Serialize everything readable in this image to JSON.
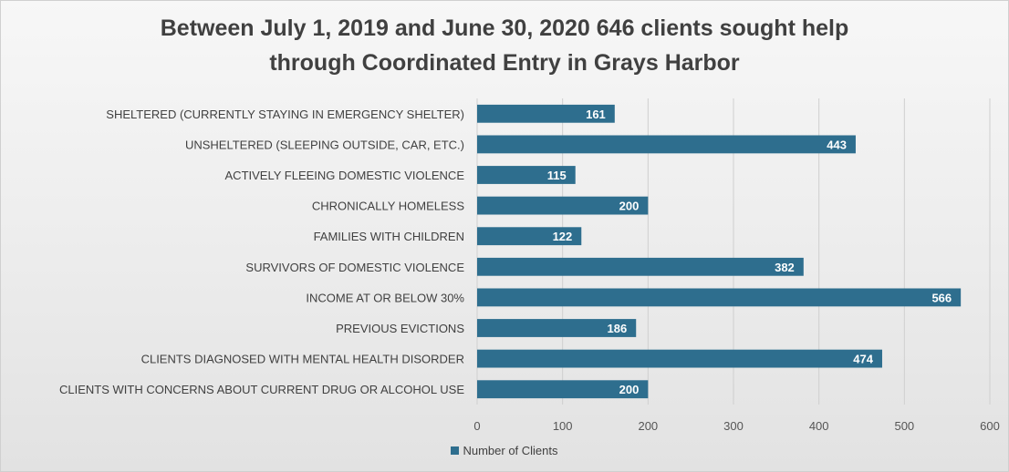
{
  "chart_data": {
    "type": "bar",
    "orientation": "horizontal",
    "title_lines": [
      "Between July 1, 2019 and June 30, 2020 646 clients sought help",
      "through Coordinated Entry in Grays Harbor"
    ],
    "categories": [
      "SHELTERED (CURRENTLY STAYING IN EMERGENCY SHELTER)",
      "UNSHELTERED (SLEEPING OUTSIDE, CAR, ETC.)",
      "ACTIVELY FLEEING DOMESTIC VIOLENCE",
      "CHRONICALLY HOMELESS",
      "FAMILIES WITH CHILDREN",
      "SURVIVORS OF DOMESTIC VIOLENCE",
      "INCOME AT OR BELOW 30%",
      "PREVIOUS EVICTIONS",
      "CLIENTS DIAGNOSED WITH MENTAL HEALTH DISORDER",
      "CLIENTS WITH CONCERNS ABOUT CURRENT DRUG OR ALCOHOL USE"
    ],
    "series": [
      {
        "name": "Number of Clients",
        "values": [
          161,
          443,
          115,
          200,
          122,
          382,
          566,
          186,
          474,
          200
        ],
        "color": "#2e6e8e"
      }
    ],
    "xlim": [
      0,
      600
    ],
    "x_ticks": [
      0,
      100,
      200,
      300,
      400,
      500,
      600
    ],
    "grid": "vertical",
    "legend_position": "bottom",
    "data_labels": "inside-end"
  }
}
